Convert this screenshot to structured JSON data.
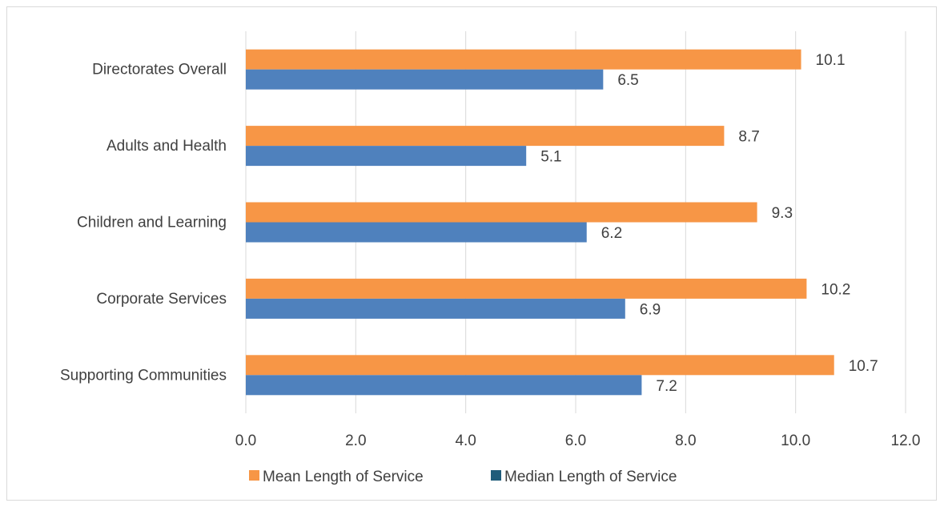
{
  "chart_data": {
    "type": "bar",
    "orientation": "horizontal",
    "categories": [
      "Directorates Overall",
      "Adults and Health",
      "Children and Learning",
      "Corporate Services",
      "Supporting Communities"
    ],
    "series": [
      {
        "name": "Mean Length of Service",
        "color": "#F79646",
        "values": [
          10.1,
          8.7,
          9.3,
          10.2,
          10.7
        ]
      },
      {
        "name": "Median Length of Service",
        "color": "#4F81BD",
        "values": [
          6.5,
          5.1,
          6.2,
          6.9,
          7.2
        ]
      }
    ],
    "xlim": [
      0,
      12
    ],
    "xticks": [
      "0.0",
      "2.0",
      "4.0",
      "6.0",
      "8.0",
      "10.0",
      "12.0"
    ],
    "grid": "vertical",
    "legend": "bottom",
    "legend_items": [
      {
        "label": "Mean Length of Service",
        "color": "#F79646"
      },
      {
        "label": "Median Length of Service",
        "color": "#1F5C7A"
      }
    ]
  }
}
